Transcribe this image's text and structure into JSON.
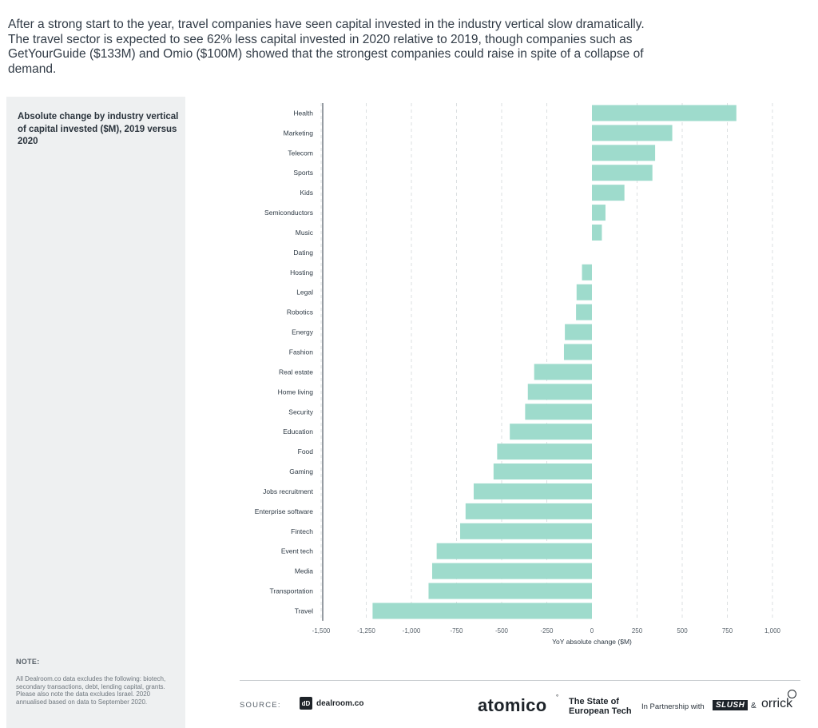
{
  "intro_text": "After a strong start to the year, travel companies have seen capital invested in the industry vertical slow dramatically. The travel sector is expected to see 62% less capital invested in 2020 relative to 2019, though companies such as GetYourGuide ($133M) and Omio ($100M) showed that the strongest companies could raise in spite of a collapse of demand.",
  "sidebar": {
    "chart_title": "Absolute change by industry vertical of capital invested ($M), 2019 versus 2020",
    "note_heading": "NOTE:",
    "note_text": "All Dealroom.co data excludes the following: biotech, secondary transactions, debt, lending capital, grants. Please also note the data excludes Israel. 2020 annualised based on data to September 2020."
  },
  "chart_data": {
    "type": "bar",
    "orientation": "horizontal",
    "title": "Absolute change by industry vertical of capital invested ($M), 2019 versus 2020",
    "xlabel": "YoY absolute change ($M)",
    "ylabel": "",
    "xlim": [
      -1500,
      1000
    ],
    "xticks": [
      -1500,
      -1250,
      -1000,
      -750,
      -500,
      -250,
      0,
      250,
      500,
      750,
      1000
    ],
    "xtick_labels": [
      "-1,500",
      "-1,250",
      "-1,000",
      "-750",
      "-500",
      "-250",
      "0",
      "250",
      "500",
      "750",
      "1,000"
    ],
    "grid": "vertical dashed",
    "bar_color": "#9edbcc",
    "categories": [
      "Health",
      "Marketing",
      "Telecom",
      "Sports",
      "Kids",
      "Semiconductors",
      "Music",
      "Dating",
      "Hosting",
      "Legal",
      "Robotics",
      "Energy",
      "Fashion",
      "Real estate",
      "Home living",
      "Security",
      "Education",
      "Food",
      "Gaming",
      "Jobs recruitment",
      "Enterprise software",
      "Fintech",
      "Event tech",
      "Media",
      "Transportation",
      "Travel"
    ],
    "values": [
      800,
      445,
      350,
      335,
      180,
      75,
      55,
      0,
      -55,
      -85,
      -88,
      -150,
      -155,
      -320,
      -355,
      -370,
      -455,
      -525,
      -545,
      -655,
      -700,
      -730,
      -860,
      -885,
      -905,
      -1215
    ]
  },
  "footer": {
    "source_label": "SOURCE:",
    "dealroom_icon": "dD",
    "dealroom_name": "dealroom.co",
    "atomico_brand": "atomico",
    "atomico_mark": "°",
    "report_title_line1": "The State of",
    "report_title_line2": "European Tech",
    "partnership_text": "In Partnership with",
    "slush_brand": "SLUSH",
    "ampersand": "&",
    "orrick_brand": "orrick"
  }
}
